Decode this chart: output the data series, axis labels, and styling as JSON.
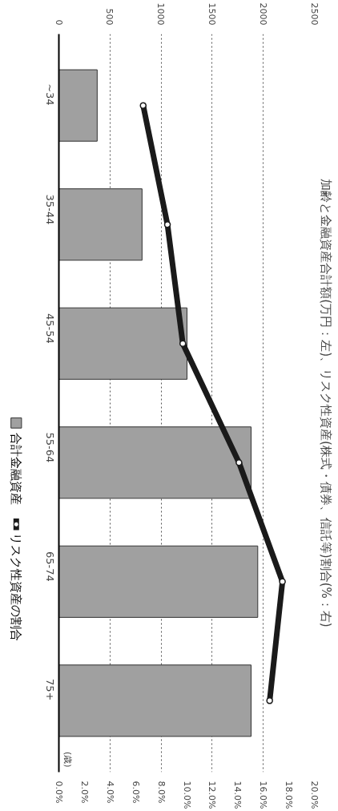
{
  "chart_data": {
    "type": "bar",
    "orientation": "horizontal",
    "title": "加齢と金融資産合計額(万円：左)、リスク性資産(株式・債券、信託等)割合(%：右)",
    "ylabel": "(歳)",
    "categories": [
      "~34",
      "35-44",
      "45-54",
      "55-64",
      "65-74",
      "75+"
    ],
    "series": [
      {
        "name": "合計金融資産",
        "color": "#a0a0a0",
        "values": [
          375,
          814,
          1254,
          1881,
          1946,
          1881
        ]
      },
      {
        "name": "リスク性資産の割合",
        "type": "line",
        "axis": "x2",
        "color": "#1a1a1a",
        "marker": "circle",
        "values": [
          6.6,
          8.5,
          9.7,
          14.1,
          17.5,
          16.5
        ]
      }
    ],
    "xlim": [
      0,
      2500
    ],
    "xticks": [
      0,
      500,
      1000,
      1500,
      2000,
      2500
    ],
    "x2lim": [
      0,
      20
    ],
    "x2ticks": [
      {
        "value": 0,
        "label": "0.0%"
      },
      {
        "value": 2,
        "label": "2.0%"
      },
      {
        "value": 4,
        "label": "4.0%"
      },
      {
        "value": 6,
        "label": "6.0%"
      },
      {
        "value": 8,
        "label": "8.0%"
      },
      {
        "value": 10,
        "label": "10.0%"
      },
      {
        "value": 12,
        "label": "12.0%"
      },
      {
        "value": 14,
        "label": "14.0%"
      },
      {
        "value": 16,
        "label": "16.0%"
      },
      {
        "value": 18,
        "label": "18.0%"
      },
      {
        "value": 20,
        "label": "20.0%"
      }
    ],
    "grid": "x",
    "legend": "left"
  }
}
